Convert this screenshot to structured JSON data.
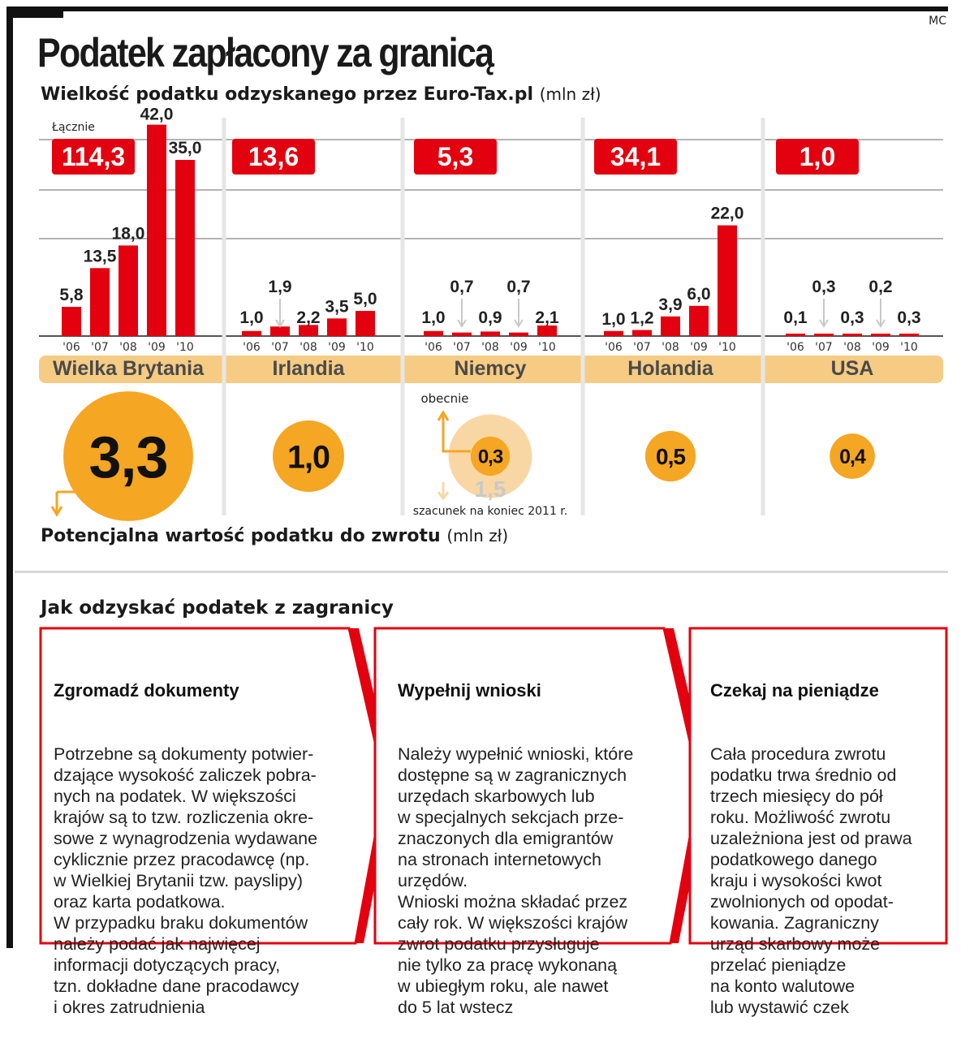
{
  "credit": "MC",
  "title": "Podatek zapłacony za granicą",
  "subtitle": "Wielkość podatku odzyskanego przez Euro-Tax.pl",
  "subtitle_unit": "(mln zł)",
  "total_label": "Łącznie",
  "bottom_label": "Potencjalna wartość podatku do zwrotu",
  "bottom_unit": "(mln zł)",
  "colors": {
    "red": "#e3000f",
    "orange": "#f5a623",
    "light_orange": "#f9d7a5",
    "band": "#f6cc84"
  },
  "chart_data": {
    "type": "bar",
    "categories": [
      "'06",
      "'07",
      "'08",
      "'09",
      "'10"
    ],
    "ylim": [
      0,
      42
    ],
    "groups": [
      {
        "country": "Wielka Brytania",
        "total": "114,3",
        "values": [
          5.8,
          13.5,
          18.0,
          42.0,
          35.0
        ],
        "labels": [
          "5,8",
          "13,5",
          "18,0",
          "42,0",
          "35,0"
        ],
        "potential": "3,3"
      },
      {
        "country": "Irlandia",
        "total": "13,6",
        "values": [
          1.0,
          1.9,
          2.2,
          3.5,
          5.0
        ],
        "labels": [
          "1,0",
          "1,9",
          "2,2",
          "3,5",
          "5,0"
        ],
        "potential": "1,0"
      },
      {
        "country": "Niemcy",
        "total": "5,3",
        "values": [
          1.0,
          0.7,
          0.9,
          0.7,
          2.1
        ],
        "labels": [
          "1,0",
          "0,7",
          "0,9",
          "0,7",
          "2,1"
        ],
        "potential": "0,3",
        "potential_estimate": "1,5",
        "potential_now_label": "obecnie",
        "potential_estimate_label": "szacunek na koniec 2011 r."
      },
      {
        "country": "Holandia",
        "total": "34,1",
        "values": [
          1.0,
          1.2,
          3.9,
          6.0,
          22.0
        ],
        "labels": [
          "1,0",
          "1,2",
          "3,9",
          "6,0",
          "22,0"
        ],
        "potential": "0,5"
      },
      {
        "country": "USA",
        "total": "1,0",
        "values": [
          0.1,
          0.3,
          0.3,
          0.2,
          0.3
        ],
        "labels": [
          "0,1",
          "0,3",
          "0,3",
          "0,2",
          "0,3"
        ],
        "potential": "0,4"
      }
    ]
  },
  "steps_title": "Jak odzyskać podatek z zagranicy",
  "steps": [
    {
      "title": "Zgromadź dokumenty",
      "lines": [
        "Potrzebne są dokumenty potwier-",
        "dzające wysokość zaliczek pobra-",
        "nych na podatek. W większości",
        "krajów są to tzw. rozliczenia okre-",
        "sowe z wynagrodzenia wydawane",
        "cyklicznie przez pracodawcę (np.",
        "w Wielkiej Brytanii tzw. payslipy)",
        "oraz karta podatkowa.",
        "W przypadku braku dokumentów",
        "należy podać jak najwięcej",
        "informacji dotyczących pracy,",
        "tzn. dokładne dane pracodawcy",
        "i okres zatrudnienia"
      ]
    },
    {
      "title": "Wypełnij wnioski",
      "lines": [
        "Należy wypełnić wnioski, które",
        "dostępne są w zagranicznych",
        "urzędach skarbowych lub",
        "w specjalnych sekcjach prze-",
        "znaczonych dla emigrantów",
        "na stronach internetowych",
        "urzędów.",
        "Wnioski można składać przez",
        "cały rok. W większości krajów",
        "zwrot podatku przysługuje",
        "nie tylko za pracę wykonaną",
        "w ubiegłym roku, ale nawet",
        "do 5 lat wstecz"
      ]
    },
    {
      "title": "Czekaj na pieniądze",
      "lines": [
        "Cała procedura zwrotu",
        "podatku trwa średnio od",
        "trzech miesięcy do pół",
        "roku. Możliwość zwrotu",
        "uzależniona jest od prawa",
        "podatkowego danego",
        "kraju i wysokości kwot",
        "zwolnionych od opodat-",
        "kowania. Zagraniczny",
        "urząd skarbowy może",
        "przelać pieniądze",
        "na konto walutowe",
        "lub wystawić czek"
      ]
    }
  ]
}
